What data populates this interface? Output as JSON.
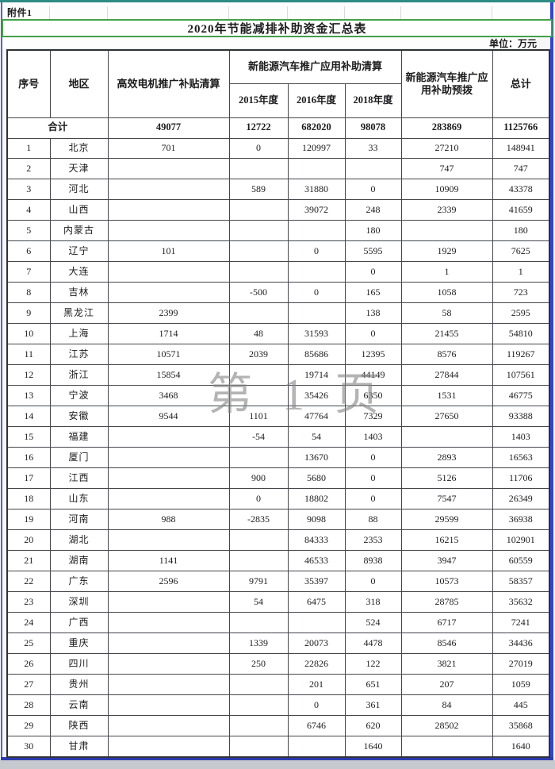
{
  "page": {
    "attachment_label": "附件1",
    "title": "2020年节能减排补助资金汇总表",
    "unit_label": "单位：万元",
    "watermark": "第 1 页"
  },
  "colors": {
    "title_border_green": "#43a04a",
    "frame_blue": "#3345cb",
    "top_teal": "#2e8b84",
    "grid_dark": "#44464c"
  },
  "table": {
    "headers": {
      "seq": "序号",
      "region": "地区",
      "motor_settlement": "高效电机推广补贴清算",
      "nev_settlement_group": "新能源汽车推广应用补助清算",
      "nev_settlement_years": [
        "2015年度",
        "2016年度",
        "2018年度"
      ],
      "nev_prepay": "新能源汽车推广应用补助预拨",
      "total": "总计"
    },
    "total_row": {
      "label": "合计",
      "values": [
        "49077",
        "12722",
        "682020",
        "98078",
        "283869",
        "1125766"
      ]
    },
    "rows": [
      {
        "seq": "1",
        "region": "北京",
        "values": [
          "701",
          "0",
          "120997",
          "33",
          "27210",
          "148941"
        ]
      },
      {
        "seq": "2",
        "region": "天津",
        "values": [
          "",
          "",
          "",
          "",
          "747",
          "747"
        ]
      },
      {
        "seq": "3",
        "region": "河北",
        "values": [
          "",
          "589",
          "31880",
          "0",
          "10909",
          "43378"
        ]
      },
      {
        "seq": "4",
        "region": "山西",
        "values": [
          "",
          "",
          "39072",
          "248",
          "2339",
          "41659"
        ]
      },
      {
        "seq": "5",
        "region": "内蒙古",
        "values": [
          "",
          "",
          "",
          "180",
          "",
          "180"
        ]
      },
      {
        "seq": "6",
        "region": "辽宁",
        "values": [
          "101",
          "",
          "0",
          "5595",
          "1929",
          "7625"
        ]
      },
      {
        "seq": "7",
        "region": "大连",
        "values": [
          "",
          "",
          "",
          "0",
          "1",
          "1"
        ]
      },
      {
        "seq": "8",
        "region": "吉林",
        "values": [
          "",
          "-500",
          "0",
          "165",
          "1058",
          "723"
        ]
      },
      {
        "seq": "9",
        "region": "黑龙江",
        "values": [
          "2399",
          "",
          "",
          "138",
          "58",
          "2595"
        ]
      },
      {
        "seq": "10",
        "region": "上海",
        "values": [
          "1714",
          "48",
          "31593",
          "0",
          "21455",
          "54810"
        ]
      },
      {
        "seq": "11",
        "region": "江苏",
        "values": [
          "10571",
          "2039",
          "85686",
          "12395",
          "8576",
          "119267"
        ]
      },
      {
        "seq": "12",
        "region": "浙江",
        "values": [
          "15854",
          "",
          "19714",
          "44149",
          "27844",
          "107561"
        ]
      },
      {
        "seq": "13",
        "region": "宁波",
        "values": [
          "3468",
          "",
          "35426",
          "6350",
          "1531",
          "46775"
        ]
      },
      {
        "seq": "14",
        "region": "安徽",
        "values": [
          "9544",
          "1101",
          "47764",
          "7329",
          "27650",
          "93388"
        ]
      },
      {
        "seq": "15",
        "region": "福建",
        "values": [
          "",
          "-54",
          "54",
          "1403",
          "",
          "1403"
        ]
      },
      {
        "seq": "16",
        "region": "厦门",
        "values": [
          "",
          "",
          "13670",
          "0",
          "2893",
          "16563"
        ]
      },
      {
        "seq": "17",
        "region": "江西",
        "values": [
          "",
          "900",
          "5680",
          "0",
          "5126",
          "11706"
        ]
      },
      {
        "seq": "18",
        "region": "山东",
        "values": [
          "",
          "0",
          "18802",
          "0",
          "7547",
          "26349"
        ]
      },
      {
        "seq": "19",
        "region": "河南",
        "values": [
          "988",
          "-2835",
          "9098",
          "88",
          "29599",
          "36938"
        ]
      },
      {
        "seq": "20",
        "region": "湖北",
        "values": [
          "",
          "",
          "84333",
          "2353",
          "16215",
          "102901"
        ]
      },
      {
        "seq": "21",
        "region": "湖南",
        "values": [
          "1141",
          "",
          "46533",
          "8938",
          "3947",
          "60559"
        ]
      },
      {
        "seq": "22",
        "region": "广东",
        "values": [
          "2596",
          "9791",
          "35397",
          "0",
          "10573",
          "58357"
        ]
      },
      {
        "seq": "23",
        "region": "深圳",
        "values": [
          "",
          "54",
          "6475",
          "318",
          "28785",
          "35632"
        ]
      },
      {
        "seq": "24",
        "region": "广西",
        "values": [
          "",
          "",
          "",
          "524",
          "6717",
          "7241"
        ]
      },
      {
        "seq": "25",
        "region": "重庆",
        "values": [
          "",
          "1339",
          "20073",
          "4478",
          "8546",
          "34436"
        ]
      },
      {
        "seq": "26",
        "region": "四川",
        "values": [
          "",
          "250",
          "22826",
          "122",
          "3821",
          "27019"
        ]
      },
      {
        "seq": "27",
        "region": "贵州",
        "values": [
          "",
          "",
          "201",
          "651",
          "207",
          "1059"
        ]
      },
      {
        "seq": "28",
        "region": "云南",
        "values": [
          "",
          "",
          "0",
          "361",
          "84",
          "445"
        ]
      },
      {
        "seq": "29",
        "region": "陕西",
        "values": [
          "",
          "",
          "6746",
          "620",
          "28502",
          "35868"
        ]
      },
      {
        "seq": "30",
        "region": "甘肃",
        "values": [
          "",
          "",
          "",
          "1640",
          "",
          "1640"
        ]
      }
    ]
  }
}
